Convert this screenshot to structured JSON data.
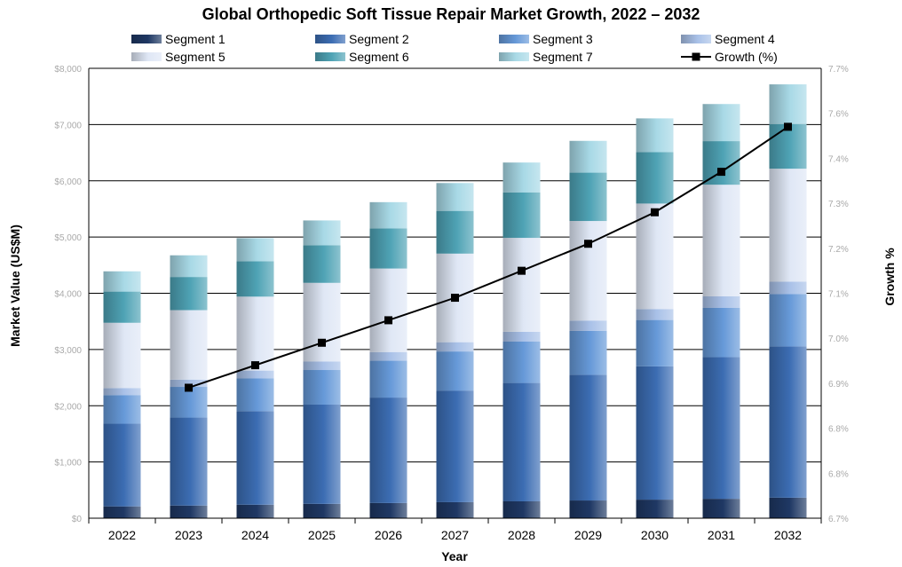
{
  "chart_data": {
    "type": "bar",
    "title": "Global Orthopedic Soft Tissue Repair Market Growth, 2022 – 2032",
    "xlabel": "Year",
    "ylabel": "Market Value (US$M)",
    "y2label": "Growth %",
    "categories": [
      "2022",
      "2023",
      "2024",
      "2025",
      "2026",
      "2027",
      "2028",
      "2029",
      "2030",
      "2031",
      "2032"
    ],
    "stacked": true,
    "ylim": [
      0,
      8000
    ],
    "y_ticks": [
      "$0",
      "$1,000",
      "$2,000",
      "$3,000",
      "$4,000",
      "$5,000",
      "$6,000",
      "$7,000",
      "$8,000"
    ],
    "y2_ticks": [
      "6.7%",
      "6.8%",
      "6.8%",
      "6.9%",
      "7.0%",
      "7.1%",
      "7.2%",
      "7.3%",
      "7.4%",
      "7.6%",
      "7.7%"
    ],
    "grid": true,
    "legend_position": "top",
    "series": [
      {
        "name": "Segment 1",
        "color": "#1f3864",
        "values": [
          210,
          225,
          240,
          255,
          270,
          285,
          300,
          315,
          330,
          345,
          365
        ]
      },
      {
        "name": "Segment 2",
        "color": "#3c6db3",
        "values": [
          1470,
          1565,
          1665,
          1765,
          1875,
          1985,
          2105,
          2235,
          2370,
          2520,
          2690
        ]
      },
      {
        "name": "Segment 3",
        "color": "#6699d8",
        "values": [
          510,
          545,
          580,
          615,
          655,
          695,
          735,
          780,
          825,
          875,
          930
        ]
      },
      {
        "name": "Segment 4",
        "color": "#a9c1e8",
        "values": [
          125,
          130,
          140,
          150,
          155,
          165,
          175,
          185,
          195,
          205,
          220
        ]
      },
      {
        "name": "Segment 5",
        "color": "#dfe7f5",
        "values": [
          1160,
          1235,
          1315,
          1400,
          1485,
          1575,
          1670,
          1770,
          1875,
          1985,
          2010
        ]
      },
      {
        "name": "Segment 6",
        "color": "#4fa3b5",
        "values": [
          555,
          590,
          630,
          670,
          715,
          760,
          810,
          860,
          915,
          775,
          795
        ]
      },
      {
        "name": "Segment 7",
        "color": "#a8d9e6",
        "values": [
          360,
          385,
          410,
          440,
          465,
          495,
          530,
          565,
          600,
          660,
          705
        ]
      }
    ],
    "line_series": {
      "name": "Growth (%)",
      "color": "#000000",
      "axis": "secondary",
      "y2lim": [
        6.7,
        7.7
      ],
      "values": [
        null,
        6.99,
        7.04,
        7.09,
        7.14,
        7.19,
        7.25,
        7.31,
        7.38,
        7.47,
        7.57
      ]
    }
  }
}
